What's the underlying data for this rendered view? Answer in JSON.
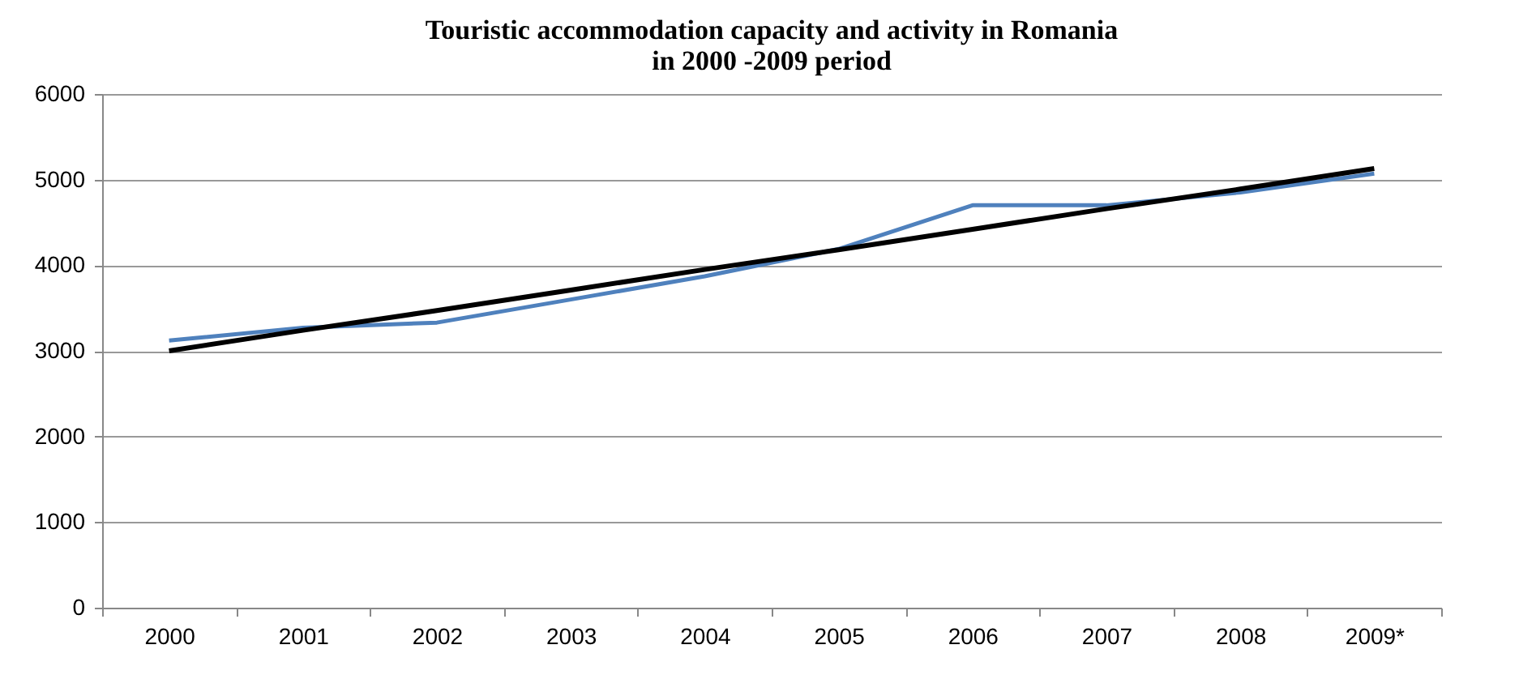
{
  "chart_data": {
    "type": "line",
    "title": [
      "Touristic accommodation capacity and activity in Romania",
      "in 2000 -2009 period"
    ],
    "categories": [
      "2000",
      "2001",
      "2002",
      "2003",
      "2004",
      "2005",
      "2006",
      "2007",
      "2008",
      "2009*"
    ],
    "series": [
      {
        "color": "#4f81bd",
        "values": [
          3120,
          3270,
          3330,
          3600,
          3870,
          4190,
          4700,
          4700,
          4850,
          5070
        ]
      },
      {
        "type": "line",
        "color": "#000000",
        "values": [
          3000,
          3240,
          3470,
          3710,
          3950,
          4180,
          4420,
          4660,
          4890,
          5130
        ]
      }
    ],
    "ylim": [
      0,
      6000
    ],
    "yticks": [
      0,
      1000,
      2000,
      3000,
      4000,
      5000,
      6000
    ],
    "grid": "y",
    "marker": "none",
    "line_style": "solid"
  }
}
